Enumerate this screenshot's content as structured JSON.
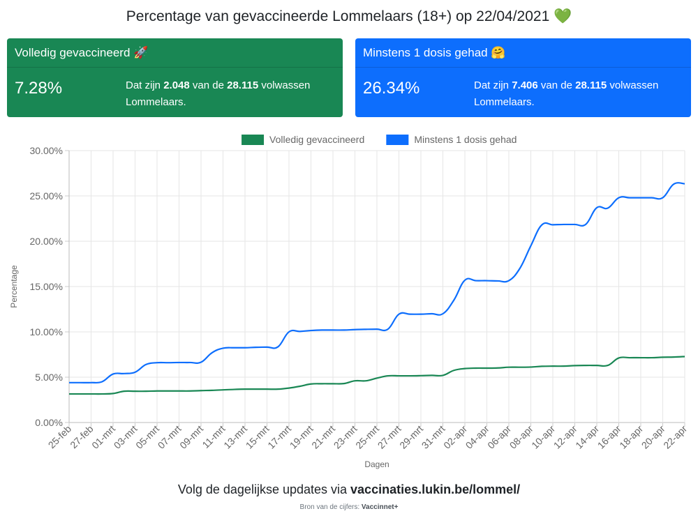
{
  "page": {
    "title": "Percentage van gevaccineerde Lommelaars (18+) op 22/04/2021 💚"
  },
  "cards": {
    "full": {
      "title": "Volledig gevaccineerd 🚀",
      "percentage": "7.28%",
      "desc_prefix": "Dat zijn ",
      "count": "2.048",
      "desc_middle": " van de ",
      "total": "28.115",
      "desc_suffix": " volwassen Lommelaars.",
      "color": "#198754"
    },
    "partial": {
      "title": "Minstens 1 dosis gehad 🤗",
      "percentage": "26.34%",
      "desc_prefix": "Dat zijn ",
      "count": "7.406",
      "desc_middle": " van de ",
      "total": "28.115",
      "desc_suffix": " volwassen Lommelaars.",
      "color": "#0d6efd"
    }
  },
  "footer": {
    "prefix": "Volg de dagelijkse updates via ",
    "link": "vaccinaties.lukin.be/lommel/",
    "source_label": "Bron van de cijfers: ",
    "source_name": "Vaccinnet+"
  },
  "chart_data": {
    "type": "line",
    "xlabel": "Dagen",
    "ylabel": "Percentage",
    "ylim": [
      0,
      30
    ],
    "yticks": [
      "0.00%",
      "5.00%",
      "10.00%",
      "15.00%",
      "20.00%",
      "25.00%",
      "30.00%"
    ],
    "grid": true,
    "legend_position": "top-center",
    "x": [
      "25-feb",
      "26-feb",
      "27-feb",
      "28-feb",
      "01-mrt",
      "02-mrt",
      "03-mrt",
      "04-mrt",
      "05-mrt",
      "06-mrt",
      "07-mrt",
      "08-mrt",
      "09-mrt",
      "10-mrt",
      "11-mrt",
      "12-mrt",
      "13-mrt",
      "14-mrt",
      "15-mrt",
      "16-mrt",
      "17-mrt",
      "18-mrt",
      "19-mrt",
      "20-mrt",
      "21-mrt",
      "22-mrt",
      "23-mrt",
      "24-mrt",
      "25-mrt",
      "26-mrt",
      "27-mrt",
      "28-mrt",
      "29-mrt",
      "30-mrt",
      "31-mrt",
      "01-apr",
      "02-apr",
      "03-apr",
      "04-apr",
      "05-apr",
      "06-apr",
      "07-apr",
      "08-apr",
      "09-apr",
      "10-apr",
      "11-apr",
      "12-apr",
      "13-apr",
      "14-apr",
      "15-apr",
      "16-apr",
      "17-apr",
      "18-apr",
      "19-apr",
      "20-apr",
      "21-apr",
      "22-apr"
    ],
    "x_tick_labels": [
      "25-feb",
      "27-feb",
      "01-mrt",
      "03-mrt",
      "05-mrt",
      "07-mrt",
      "09-mrt",
      "11-mrt",
      "13-mrt",
      "15-mrt",
      "17-mrt",
      "19-mrt",
      "21-mrt",
      "23-mrt",
      "25-mrt",
      "27-mrt",
      "29-mrt",
      "31-mrt",
      "02-apr",
      "04-apr",
      "06-apr",
      "08-apr",
      "10-apr",
      "12-apr",
      "14-apr",
      "16-apr",
      "18-apr",
      "20-apr",
      "22-apr"
    ],
    "series": [
      {
        "name": "Volledig gevaccineerd",
        "color": "#198754",
        "values": [
          3.15,
          3.15,
          3.15,
          3.15,
          3.2,
          3.45,
          3.45,
          3.45,
          3.48,
          3.48,
          3.48,
          3.48,
          3.52,
          3.55,
          3.6,
          3.65,
          3.68,
          3.68,
          3.68,
          3.68,
          3.8,
          4.0,
          4.25,
          4.28,
          4.28,
          4.3,
          4.6,
          4.6,
          4.9,
          5.15,
          5.15,
          5.15,
          5.17,
          5.2,
          5.2,
          5.75,
          5.95,
          6.0,
          6.0,
          6.02,
          6.1,
          6.1,
          6.12,
          6.2,
          6.22,
          6.22,
          6.28,
          6.3,
          6.3,
          6.3,
          7.12,
          7.15,
          7.15,
          7.15,
          7.2,
          7.22,
          7.28
        ]
      },
      {
        "name": "Minstens 1 dosis gehad",
        "color": "#0d6efd",
        "values": [
          4.4,
          4.4,
          4.4,
          4.5,
          5.35,
          5.4,
          5.55,
          6.4,
          6.6,
          6.6,
          6.62,
          6.62,
          6.65,
          7.7,
          8.2,
          8.25,
          8.25,
          8.3,
          8.32,
          8.35,
          10.0,
          10.05,
          10.15,
          10.2,
          10.2,
          10.2,
          10.25,
          10.28,
          10.3,
          10.3,
          11.95,
          11.95,
          11.95,
          12.0,
          12.0,
          13.5,
          15.7,
          15.65,
          15.65,
          15.62,
          15.65,
          17.0,
          19.5,
          21.8,
          21.82,
          21.85,
          21.85,
          21.87,
          23.7,
          23.65,
          24.8,
          24.8,
          24.8,
          24.8,
          24.8,
          26.3,
          26.34
        ]
      }
    ]
  }
}
